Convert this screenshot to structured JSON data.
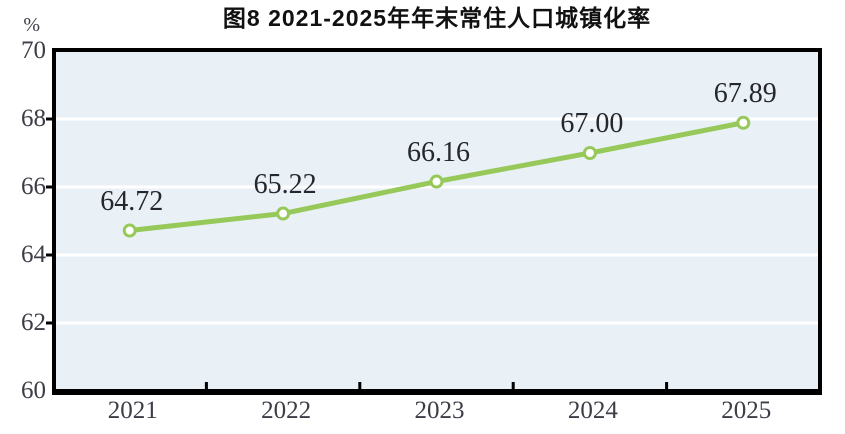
{
  "chart_data": {
    "type": "line",
    "title": "图8  2021-2025年年末常住人口城镇化率",
    "unit_label": "%",
    "categories": [
      "2021",
      "2022",
      "2023",
      "2024",
      "2025"
    ],
    "values": [
      64.72,
      65.22,
      66.16,
      67.0,
      67.89
    ],
    "value_labels": [
      "64.72",
      "65.22",
      "66.16",
      "67.00",
      "67.89"
    ],
    "ylim": [
      60,
      70
    ],
    "yticks": [
      60,
      62,
      64,
      66,
      68,
      70
    ],
    "grid": "horizontal-white-gridlines",
    "legend": "none",
    "colors": {
      "line": "#96c85a",
      "marker_fill": "#ffffff",
      "marker_stroke": "#96c85a",
      "plot_background": "#e9f1f6",
      "gridline": "#ffffff",
      "axis_border": "#000000",
      "title_text": "#111111",
      "tick_label_text": "#3d3d47",
      "data_label_text": "#26262e",
      "page_background": "#ffffff"
    }
  }
}
